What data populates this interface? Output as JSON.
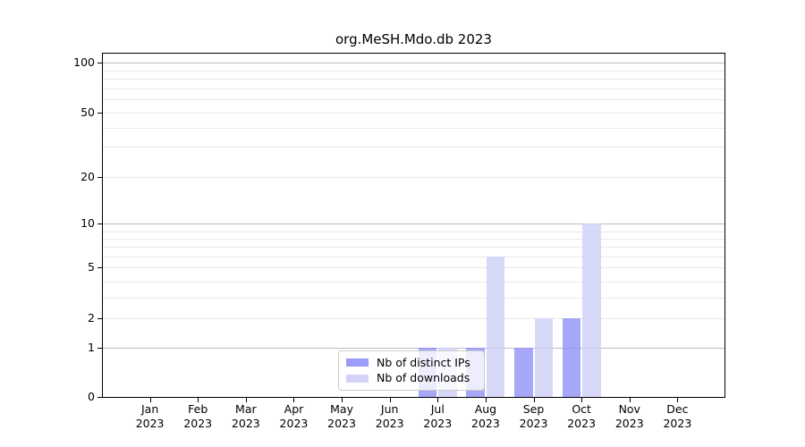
{
  "chart_data": {
    "type": "bar",
    "title": "org.MeSH.Mdo.db 2023",
    "categories": [
      "Jan 2023",
      "Feb 2023",
      "Mar 2023",
      "Apr 2023",
      "May 2023",
      "Jun 2023",
      "Jul 2023",
      "Aug 2023",
      "Sep 2023",
      "Oct 2023",
      "Nov 2023",
      "Dec 2023"
    ],
    "series": [
      {
        "name": "Nb of distinct IPs",
        "color": "#9191f8",
        "values": [
          0,
          0,
          0,
          0,
          0,
          0,
          1,
          1,
          1,
          2,
          0,
          0
        ]
      },
      {
        "name": "Nb of downloads",
        "color": "#cecef6",
        "values": [
          0,
          0,
          0,
          0,
          0,
          0,
          1,
          6,
          2,
          10,
          0,
          0
        ]
      }
    ],
    "y_ticks": [
      0,
      1,
      2,
      5,
      10,
      20,
      50,
      100
    ],
    "ylim": [
      0,
      110
    ],
    "y_scale": "log-like",
    "grid": {
      "orientation": "horizontal",
      "major_values": [
        1,
        10,
        100
      ],
      "minor_values": [
        2,
        3,
        4,
        5,
        6,
        7,
        8,
        9,
        20,
        30,
        40,
        50,
        60,
        70,
        80,
        90
      ]
    },
    "value_positions": {
      "0": 0,
      "1": 0.1429,
      "2": 0.2273,
      "3": 0.2883,
      "4": 0.3351,
      "5": 0.3766,
      "6": 0.4078,
      "7": 0.4364,
      "8": 0.4597,
      "9": 0.4805,
      "10": 0.5039,
      "20": 0.639,
      "30": 0.726,
      "40": 0.7831,
      "50": 0.826,
      "60": 0.8649,
      "70": 0.8961,
      "80": 0.9247,
      "90": 0.9481,
      "100": 0.9714
    },
    "legend": {
      "position": "lower-center-inset"
    },
    "colors": {
      "bar_ips": "#9191f8",
      "bar_downloads": "#cecef6",
      "grid_major": "#bcbcbc",
      "grid_minor": "#e8e8e8",
      "axis": "#000000",
      "legend_border": "#cccccc"
    }
  }
}
